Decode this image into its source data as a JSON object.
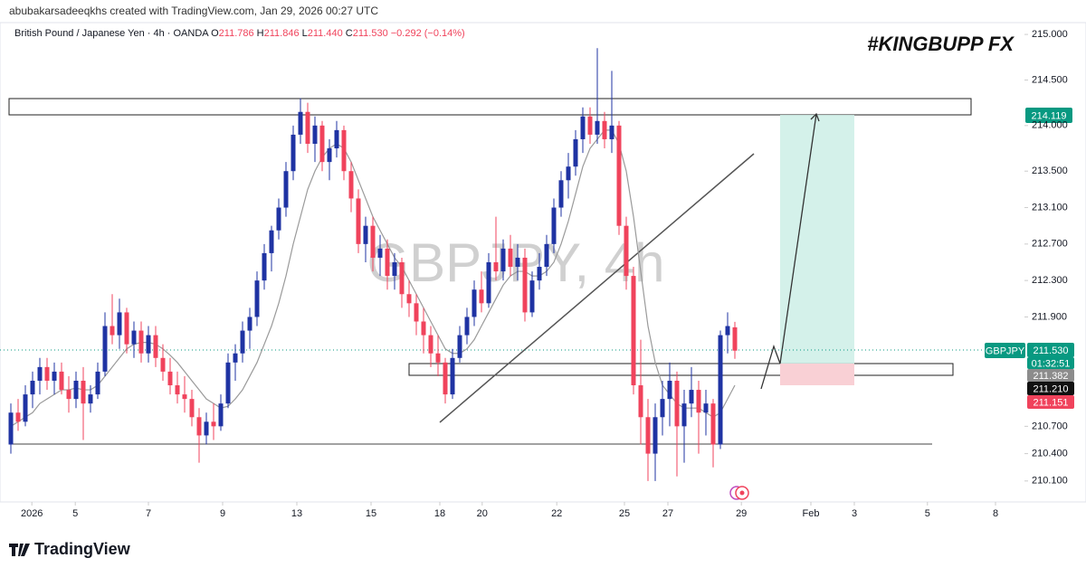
{
  "header": {
    "credit": "abubakarsadeeqkhs created with TradingView.com, Jan 29, 2026 00:27 UTC",
    "symbol": "British Pound / Japanese Yen · 4h · OANDA",
    "o_label": "O",
    "o": "211.786",
    "h_label": "H",
    "h": "211.846",
    "l_label": "L",
    "l": "211.440",
    "c_label": "C",
    "c": "211.530",
    "change": "−0.292 (−0.14%)"
  },
  "chart_data": {
    "type": "candlestick",
    "title": "#KINGBUPP FX",
    "watermark": "GBPJPY, 4h",
    "up_color": "#1f33a3",
    "down_color": "#f0435c",
    "ma_color": "#9a9a9a",
    "candles": [
      [
        210.5,
        210.95,
        210.4,
        210.85
      ],
      [
        210.85,
        211.0,
        210.65,
        210.75
      ],
      [
        210.75,
        211.15,
        210.7,
        211.05
      ],
      [
        211.05,
        211.3,
        210.9,
        211.2
      ],
      [
        211.2,
        211.45,
        211.05,
        211.35
      ],
      [
        211.35,
        211.45,
        211.1,
        211.2
      ],
      [
        211.2,
        211.4,
        211.05,
        211.3
      ],
      [
        211.3,
        211.4,
        211.05,
        211.1
      ],
      [
        211.1,
        211.25,
        210.85,
        211.0
      ],
      [
        211.0,
        211.3,
        210.9,
        211.2
      ],
      [
        211.2,
        211.35,
        210.55,
        210.95
      ],
      [
        210.95,
        211.15,
        210.85,
        211.05
      ],
      [
        211.05,
        211.4,
        211.0,
        211.3
      ],
      [
        211.3,
        211.95,
        211.25,
        211.8
      ],
      [
        211.8,
        212.15,
        211.6,
        211.7
      ],
      [
        211.7,
        212.1,
        211.55,
        211.95
      ],
      [
        211.95,
        212.0,
        211.5,
        211.6
      ],
      [
        211.6,
        211.85,
        211.45,
        211.75
      ],
      [
        211.75,
        211.85,
        211.4,
        211.5
      ],
      [
        211.5,
        211.8,
        211.4,
        211.7
      ],
      [
        211.7,
        211.8,
        211.35,
        211.45
      ],
      [
        211.45,
        211.6,
        211.2,
        211.3
      ],
      [
        211.3,
        211.45,
        211.05,
        211.15
      ],
      [
        211.15,
        211.3,
        210.95,
        211.05
      ],
      [
        211.05,
        211.25,
        210.85,
        211.0
      ],
      [
        211.0,
        211.1,
        210.7,
        210.8
      ],
      [
        210.8,
        210.9,
        210.3,
        210.6
      ],
      [
        210.6,
        210.85,
        210.5,
        210.75
      ],
      [
        210.75,
        210.95,
        210.55,
        210.7
      ],
      [
        210.7,
        211.05,
        210.65,
        210.95
      ],
      [
        210.95,
        211.5,
        210.9,
        211.4
      ],
      [
        211.4,
        211.6,
        211.2,
        211.5
      ],
      [
        211.5,
        211.85,
        211.4,
        211.75
      ],
      [
        211.75,
        212.0,
        211.55,
        211.9
      ],
      [
        211.9,
        212.4,
        211.8,
        212.3
      ],
      [
        212.3,
        212.7,
        212.2,
        212.6
      ],
      [
        212.6,
        212.9,
        212.4,
        212.85
      ],
      [
        212.85,
        213.2,
        212.75,
        213.1
      ],
      [
        213.1,
        213.6,
        213.0,
        213.5
      ],
      [
        213.5,
        214.0,
        213.4,
        213.9
      ],
      [
        213.9,
        214.3,
        213.8,
        214.15
      ],
      [
        214.15,
        214.25,
        213.7,
        213.8
      ],
      [
        213.8,
        214.1,
        213.6,
        214.0
      ],
      [
        214.0,
        214.05,
        213.5,
        213.6
      ],
      [
        213.6,
        213.85,
        213.4,
        213.75
      ],
      [
        213.75,
        214.05,
        213.65,
        213.95
      ],
      [
        213.95,
        214.0,
        213.4,
        213.5
      ],
      [
        213.5,
        213.6,
        213.05,
        213.2
      ],
      [
        213.2,
        213.3,
        212.6,
        212.7
      ],
      [
        212.7,
        213.0,
        212.5,
        212.9
      ],
      [
        212.9,
        213.0,
        212.4,
        212.55
      ],
      [
        212.55,
        212.8,
        212.35,
        212.65
      ],
      [
        212.65,
        212.75,
        212.2,
        212.35
      ],
      [
        212.35,
        212.6,
        212.2,
        212.5
      ],
      [
        212.5,
        212.55,
        212.0,
        212.15
      ],
      [
        212.15,
        212.3,
        211.9,
        212.05
      ],
      [
        212.05,
        212.15,
        211.7,
        211.85
      ],
      [
        211.85,
        212.0,
        211.5,
        211.7
      ],
      [
        211.7,
        211.8,
        211.35,
        211.5
      ],
      [
        211.5,
        211.7,
        211.25,
        211.4
      ],
      [
        211.4,
        211.45,
        210.95,
        211.05
      ],
      [
        211.05,
        211.55,
        211.0,
        211.45
      ],
      [
        211.45,
        211.8,
        211.4,
        211.7
      ],
      [
        211.7,
        212.0,
        211.6,
        211.9
      ],
      [
        211.9,
        212.3,
        211.8,
        212.2
      ],
      [
        212.2,
        212.4,
        211.95,
        212.05
      ],
      [
        212.05,
        212.6,
        212.0,
        212.5
      ],
      [
        212.5,
        213.0,
        212.3,
        212.4
      ],
      [
        212.4,
        212.75,
        212.3,
        212.65
      ],
      [
        212.65,
        212.8,
        212.35,
        212.45
      ],
      [
        212.45,
        212.7,
        212.3,
        212.55
      ],
      [
        212.55,
        212.65,
        211.85,
        211.95
      ],
      [
        211.95,
        212.4,
        211.9,
        212.3
      ],
      [
        212.3,
        212.6,
        212.2,
        212.45
      ],
      [
        212.45,
        212.8,
        212.35,
        212.7
      ],
      [
        212.7,
        213.2,
        212.6,
        213.1
      ],
      [
        213.1,
        213.5,
        213.0,
        213.4
      ],
      [
        213.4,
        213.7,
        213.2,
        213.55
      ],
      [
        213.55,
        213.95,
        213.45,
        213.85
      ],
      [
        213.85,
        214.2,
        213.7,
        214.1
      ],
      [
        214.1,
        214.2,
        213.8,
        213.9
      ],
      [
        213.9,
        214.85,
        213.8,
        214.05
      ],
      [
        214.05,
        214.15,
        213.75,
        213.85
      ],
      [
        213.85,
        214.6,
        213.7,
        214.0
      ],
      [
        214.0,
        214.05,
        212.8,
        212.9
      ],
      [
        212.9,
        213.0,
        212.2,
        212.35
      ],
      [
        212.35,
        212.45,
        211.05,
        211.15
      ],
      [
        211.15,
        211.65,
        210.5,
        210.8
      ],
      [
        210.8,
        211.0,
        210.1,
        210.4
      ],
      [
        210.4,
        210.95,
        210.1,
        210.8
      ],
      [
        210.8,
        211.2,
        210.6,
        211.0
      ],
      [
        211.0,
        211.4,
        210.7,
        211.2
      ],
      [
        211.2,
        211.3,
        210.15,
        210.7
      ],
      [
        210.7,
        211.1,
        210.3,
        210.95
      ],
      [
        210.95,
        211.35,
        210.8,
        211.1
      ],
      [
        211.1,
        211.2,
        210.4,
        210.85
      ],
      [
        210.85,
        211.1,
        210.6,
        210.95
      ],
      [
        210.95,
        211.0,
        210.25,
        210.5
      ],
      [
        210.5,
        211.75,
        210.45,
        211.7
      ],
      [
        211.7,
        211.95,
        211.5,
        211.8
      ],
      [
        211.786,
        211.846,
        211.44,
        211.53
      ]
    ],
    "ma": [
      210.7,
      210.75,
      210.8,
      210.85,
      210.95,
      211.0,
      211.05,
      211.1,
      211.1,
      211.12,
      211.1,
      211.1,
      211.15,
      211.25,
      211.35,
      211.45,
      211.55,
      211.6,
      211.62,
      211.62,
      211.6,
      211.55,
      211.48,
      211.4,
      211.3,
      211.2,
      211.1,
      211.0,
      210.95,
      210.9,
      210.92,
      211.0,
      211.1,
      211.25,
      211.4,
      211.6,
      211.8,
      212.05,
      212.35,
      212.7,
      213.0,
      213.3,
      213.5,
      213.65,
      213.75,
      213.8,
      213.75,
      213.6,
      213.4,
      213.2,
      213.0,
      212.85,
      212.7,
      212.55,
      212.45,
      212.3,
      212.15,
      212.0,
      211.85,
      211.7,
      211.55,
      211.5,
      211.5,
      211.55,
      211.65,
      211.8,
      211.95,
      212.1,
      212.25,
      212.35,
      212.4,
      212.4,
      212.35,
      212.35,
      212.4,
      212.5,
      212.7,
      212.95,
      213.25,
      213.55,
      213.75,
      213.85,
      213.95,
      213.95,
      213.8,
      213.5,
      213.0,
      212.4,
      211.8,
      211.4,
      211.15,
      211.05,
      210.95,
      210.9,
      210.9,
      210.9,
      210.85,
      210.8,
      210.85,
      211.0,
      211.15
    ],
    "ylim": [
      209.87,
      215.1
    ],
    "yticks": [
      {
        "value": 215,
        "label": "215.000"
      },
      {
        "value": 214.5,
        "label": "214.500"
      },
      {
        "value": 214,
        "label": "214.000"
      },
      {
        "value": 213.5,
        "label": "213.500"
      },
      {
        "value": 213.1,
        "label": "213.100"
      },
      {
        "value": 212.7,
        "label": "212.700"
      },
      {
        "value": 212.3,
        "label": "212.300"
      },
      {
        "value": 211.9,
        "label": "211.900"
      },
      {
        "value": 210.7,
        "label": "210.700"
      },
      {
        "value": 210.4,
        "label": "210.400"
      },
      {
        "value": 210.1,
        "label": "210.100"
      }
    ],
    "xlim": [
      -1.5,
      139.75
    ],
    "xticks": [
      {
        "value": 2.9,
        "label": "2026"
      },
      {
        "value": 8.9,
        "label": "5"
      },
      {
        "value": 19,
        "label": "7"
      },
      {
        "value": 29.25,
        "label": "9"
      },
      {
        "value": 39.5,
        "label": "13"
      },
      {
        "value": 49.75,
        "label": "15"
      },
      {
        "value": 59.25,
        "label": "18"
      },
      {
        "value": 65.1,
        "label": "20"
      },
      {
        "value": 75.4,
        "label": "22"
      },
      {
        "value": 84.75,
        "label": "25"
      },
      {
        "value": 90.75,
        "label": "27"
      },
      {
        "value": 100.9,
        "label": "29"
      },
      {
        "value": 110.5,
        "label": "Feb"
      },
      {
        "value": 116.5,
        "label": "3"
      },
      {
        "value": 126.6,
        "label": "5"
      },
      {
        "value": 136,
        "label": "8"
      }
    ],
    "price_labels": [
      {
        "text": "214.119"
      },
      {
        "text": "GBPJPY"
      },
      {
        "text": "211.530"
      },
      {
        "text": "01:32:51"
      },
      {
        "text": "211.382"
      },
      {
        "text": "211.210"
      },
      {
        "text": "211.151"
      }
    ]
  },
  "footer": {
    "brand": "TradingView"
  }
}
